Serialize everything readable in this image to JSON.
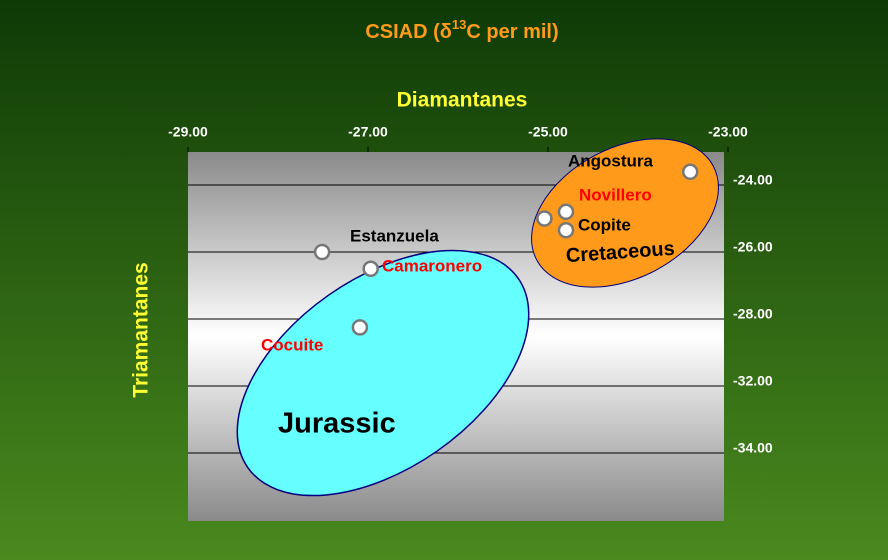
{
  "chart_data": {
    "type": "scatter",
    "title": [
      "CSIAD (δ",
      "13",
      "C per mil)"
    ],
    "x_label": "Diamantanes",
    "y_label": "Triamantanes",
    "xlim": [
      -29,
      -23
    ],
    "xticks": [
      {
        "value": -29,
        "label": "-29.00"
      },
      {
        "value": -27,
        "label": "-27.00"
      },
      {
        "value": -25,
        "label": "-25.00"
      },
      {
        "value": -23,
        "label": "-23.00"
      }
    ],
    "ylim": [
      -23,
      -36
    ],
    "yticks": [
      {
        "value": -24,
        "label": "-24.00"
      },
      {
        "value": -26,
        "label": "-26.00"
      },
      {
        "value": -28,
        "label": "-28.00"
      },
      {
        "value": -32,
        "label": "-32.00"
      },
      {
        "value": -34,
        "label": "-34.00"
      }
    ],
    "grid": true,
    "x": [
      -27.51,
      -26.97,
      -27.09,
      -23.42,
      -25.04,
      -24.8,
      -24.8
    ],
    "values": [
      -26.0,
      -26.5,
      -28.5,
      -23.6,
      -25.0,
      -24.8,
      -25.35
    ],
    "color": "#ffffff",
    "annotations": [
      {
        "text": "Estanzuela",
        "color": "#000000"
      },
      {
        "text": "Camaronero",
        "color": "#ff0000"
      },
      {
        "text": "Cocuite",
        "color": "#ff0000"
      },
      {
        "text": "Angostura",
        "color": "#000000"
      },
      {
        "text": "Novillero",
        "color": "#ff0000"
      },
      {
        "text": "Copite",
        "color": "#000000"
      }
    ],
    "groups": [
      {
        "text": "Jurassic",
        "color": "#66ffff"
      },
      {
        "text": "Cretaceous",
        "color": "#ff9a1a"
      }
    ]
  }
}
